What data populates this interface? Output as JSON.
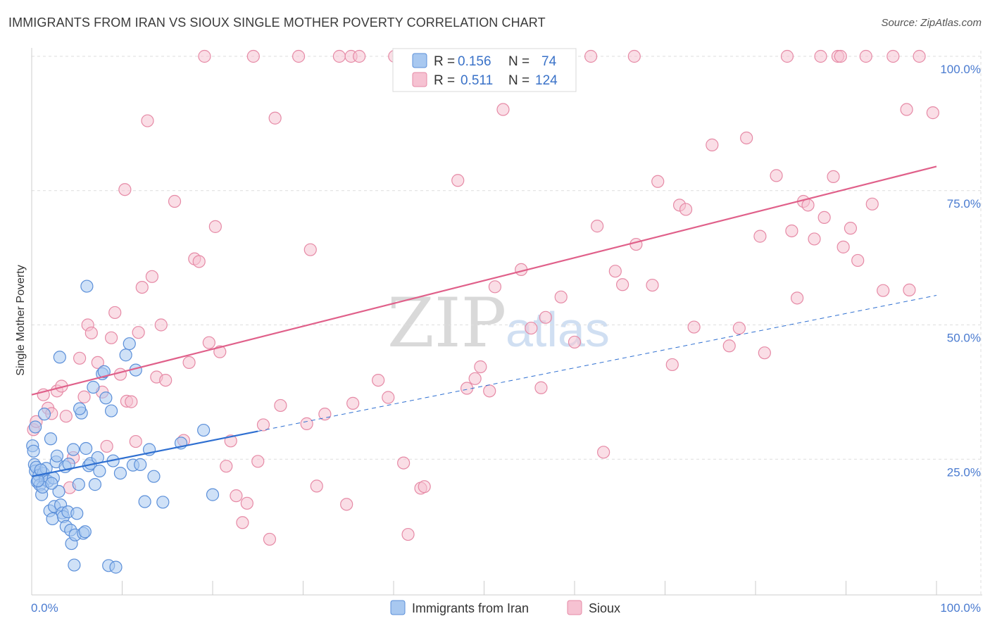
{
  "header": {
    "title": "IMMIGRANTS FROM IRAN VS SIOUX SINGLE MOTHER POVERTY CORRELATION CHART",
    "source": "Source: ZipAtlas.com"
  },
  "watermark": {
    "zip": "ZIP",
    "atlas": "atlas"
  },
  "legend": {
    "iran": {
      "r_label": "R =",
      "r_value": "0.156",
      "n_label": "N =",
      "n_value": "74"
    },
    "sioux": {
      "r_label": "R =",
      "r_value": "0.511",
      "n_label": "N =",
      "n_value": "124"
    }
  },
  "colors": {
    "iran_fill": "#a8c8f0",
    "iran_stroke": "#5b8fd9",
    "iran_line": "#2e6fd1",
    "sioux_fill": "#f6c2d2",
    "sioux_stroke": "#e68aa6",
    "sioux_line": "#e0608a",
    "tick_blue": "#4a7bd0",
    "grid": "#dedede"
  },
  "chart_data": {
    "type": "scatter",
    "title": "IMMIGRANTS FROM IRAN VS SIOUX SINGLE MOTHER POVERTY CORRELATION CHART",
    "xlabel": "",
    "ylabel": "Single Mother Poverty",
    "xlim": [
      0,
      100
    ],
    "ylim": [
      0,
      105
    ],
    "x_tick_labels": [
      "0.0%",
      "100.0%"
    ],
    "y_ticks": [
      25,
      50,
      75,
      100
    ],
    "y_tick_labels": [
      "25.0%",
      "50.0%",
      "75.0%",
      "100.0%"
    ],
    "series": [
      {
        "name": "Immigrants from Iran",
        "r": 0.156,
        "n": 74,
        "trend": {
          "x_start": 0,
          "y_start": 21.8,
          "x_end": 25,
          "y_end": 30.2,
          "dashed_to_x": 100,
          "dashed_to_y": 55.5
        },
        "points": [
          [
            0.1,
            27.5
          ],
          [
            0.2,
            26.5
          ],
          [
            0.3,
            24.0
          ],
          [
            0.4,
            22.8
          ],
          [
            0.5,
            23.5
          ],
          [
            0.6,
            20.8
          ],
          [
            0.8,
            22.0
          ],
          [
            0.9,
            20.2
          ],
          [
            1.1,
            18.4
          ],
          [
            1.3,
            22.4
          ],
          [
            1.5,
            21.2
          ],
          [
            1.6,
            23.3
          ],
          [
            1.8,
            20.9
          ],
          [
            2.0,
            15.4
          ],
          [
            2.1,
            28.8
          ],
          [
            2.3,
            13.9
          ],
          [
            2.5,
            16.2
          ],
          [
            2.7,
            24.5
          ],
          [
            2.8,
            25.6
          ],
          [
            3.0,
            19.0
          ],
          [
            3.2,
            16.5
          ],
          [
            3.4,
            15.0
          ],
          [
            3.5,
            14.3
          ],
          [
            3.7,
            23.6
          ],
          [
            3.8,
            12.5
          ],
          [
            4.0,
            15.2
          ],
          [
            4.1,
            24.1
          ],
          [
            4.3,
            11.8
          ],
          [
            4.4,
            9.3
          ],
          [
            4.6,
            26.8
          ],
          [
            4.8,
            10.9
          ],
          [
            5.0,
            14.9
          ],
          [
            5.2,
            20.3
          ],
          [
            5.5,
            33.6
          ],
          [
            5.7,
            11.2
          ],
          [
            5.9,
            11.5
          ],
          [
            6.0,
            27.0
          ],
          [
            6.3,
            23.8
          ],
          [
            6.5,
            24.2
          ],
          [
            6.8,
            38.4
          ],
          [
            7.0,
            20.3
          ],
          [
            7.3,
            25.3
          ],
          [
            7.5,
            22.8
          ],
          [
            7.8,
            40.9
          ],
          [
            8.0,
            41.3
          ],
          [
            8.2,
            36.4
          ],
          [
            8.5,
            5.2
          ],
          [
            8.8,
            34.0
          ],
          [
            9.0,
            24.7
          ],
          [
            9.3,
            4.9
          ],
          [
            9.8,
            22.4
          ],
          [
            10.4,
            44.4
          ],
          [
            10.8,
            46.5
          ],
          [
            11.2,
            23.9
          ],
          [
            11.5,
            41.6
          ],
          [
            12.0,
            24.0
          ],
          [
            12.5,
            17.1
          ],
          [
            13.0,
            26.8
          ],
          [
            13.5,
            21.8
          ],
          [
            14.5,
            17.0
          ],
          [
            16.5,
            28.0
          ],
          [
            19.0,
            30.4
          ],
          [
            20.0,
            18.4
          ],
          [
            4.7,
            5.3
          ],
          [
            3.1,
            44.0
          ],
          [
            2.4,
            21.5
          ],
          [
            1.2,
            19.8
          ],
          [
            0.7,
            21.0
          ],
          [
            5.3,
            34.4
          ],
          [
            6.1,
            57.2
          ],
          [
            1.0,
            23.0
          ],
          [
            2.2,
            20.5
          ],
          [
            0.4,
            31.0
          ],
          [
            1.4,
            33.4
          ]
        ]
      },
      {
        "name": "Sioux",
        "r": 0.511,
        "n": 124,
        "trend": {
          "x_start": 0,
          "y_start": 37.0,
          "x_end": 100,
          "y_end": 79.5
        },
        "points": [
          [
            0.2,
            30.5
          ],
          [
            0.5,
            32.0
          ],
          [
            1.3,
            37.0
          ],
          [
            1.8,
            34.5
          ],
          [
            2.2,
            33.5
          ],
          [
            2.8,
            37.7
          ],
          [
            3.3,
            38.6
          ],
          [
            3.8,
            33.0
          ],
          [
            4.2,
            19.7
          ],
          [
            4.6,
            25.3
          ],
          [
            5.3,
            43.8
          ],
          [
            5.8,
            36.6
          ],
          [
            6.2,
            50.0
          ],
          [
            6.6,
            48.5
          ],
          [
            7.3,
            43.0
          ],
          [
            7.8,
            37.5
          ],
          [
            8.3,
            27.4
          ],
          [
            8.8,
            47.6
          ],
          [
            9.2,
            52.3
          ],
          [
            9.8,
            40.8
          ],
          [
            10.3,
            75.2
          ],
          [
            10.5,
            35.8
          ],
          [
            11.0,
            35.7
          ],
          [
            11.5,
            28.3
          ],
          [
            11.8,
            48.6
          ],
          [
            12.2,
            57.0
          ],
          [
            12.8,
            88.0
          ],
          [
            13.3,
            59.0
          ],
          [
            13.8,
            40.3
          ],
          [
            14.3,
            50.0
          ],
          [
            14.8,
            39.7
          ],
          [
            15.8,
            73.0
          ],
          [
            16.8,
            28.5
          ],
          [
            17.4,
            43.0
          ],
          [
            18.0,
            62.3
          ],
          [
            18.5,
            61.8
          ],
          [
            19.1,
            100.0
          ],
          [
            19.6,
            46.7
          ],
          [
            20.3,
            68.3
          ],
          [
            20.8,
            45.0
          ],
          [
            21.5,
            23.7
          ],
          [
            22.0,
            28.4
          ],
          [
            22.6,
            18.2
          ],
          [
            23.3,
            13.2
          ],
          [
            23.8,
            16.8
          ],
          [
            24.5,
            100.0
          ],
          [
            25.0,
            24.6
          ],
          [
            25.6,
            31.4
          ],
          [
            26.3,
            10.1
          ],
          [
            26.9,
            88.5
          ],
          [
            27.5,
            35.0
          ],
          [
            29.5,
            100.0
          ],
          [
            30.4,
            31.6
          ],
          [
            30.8,
            64.0
          ],
          [
            31.5,
            20.0
          ],
          [
            32.4,
            33.4
          ],
          [
            34.0,
            100.0
          ],
          [
            34.8,
            16.6
          ],
          [
            35.3,
            100.0
          ],
          [
            35.5,
            35.4
          ],
          [
            36.2,
            100.0
          ],
          [
            38.3,
            39.7
          ],
          [
            39.4,
            36.5
          ],
          [
            40.1,
            100.0
          ],
          [
            41.1,
            24.3
          ],
          [
            41.6,
            11.0
          ],
          [
            43.0,
            19.6
          ],
          [
            43.4,
            19.9
          ],
          [
            47.1,
            76.9
          ],
          [
            48.1,
            38.2
          ],
          [
            49.0,
            40.0
          ],
          [
            49.6,
            42.2
          ],
          [
            50.6,
            37.7
          ],
          [
            51.2,
            57.1
          ],
          [
            52.1,
            90.1
          ],
          [
            53.1,
            100.0
          ],
          [
            54.1,
            60.3
          ],
          [
            55.2,
            49.4
          ],
          [
            56.3,
            38.3
          ],
          [
            56.8,
            51.4
          ],
          [
            58.5,
            55.2
          ],
          [
            60.0,
            46.8
          ],
          [
            61.8,
            100.0
          ],
          [
            62.5,
            68.4
          ],
          [
            63.2,
            26.3
          ],
          [
            64.5,
            60.0
          ],
          [
            65.3,
            57.5
          ],
          [
            66.6,
            100.0
          ],
          [
            66.8,
            65.0
          ],
          [
            68.6,
            57.4
          ],
          [
            69.2,
            76.7
          ],
          [
            70.8,
            42.6
          ],
          [
            71.6,
            72.3
          ],
          [
            72.3,
            71.5
          ],
          [
            73.2,
            49.6
          ],
          [
            75.2,
            83.5
          ],
          [
            77.1,
            46.1
          ],
          [
            78.2,
            49.4
          ],
          [
            79.0,
            84.8
          ],
          [
            80.5,
            66.5
          ],
          [
            81.0,
            44.8
          ],
          [
            82.3,
            77.8
          ],
          [
            83.5,
            100.0
          ],
          [
            84.0,
            67.5
          ],
          [
            84.6,
            55.0
          ],
          [
            85.3,
            73.0
          ],
          [
            85.8,
            72.3
          ],
          [
            86.5,
            66.0
          ],
          [
            87.2,
            100.0
          ],
          [
            87.6,
            70.0
          ],
          [
            88.6,
            77.6
          ],
          [
            89.1,
            100.0
          ],
          [
            89.4,
            100.0
          ],
          [
            89.7,
            64.5
          ],
          [
            90.5,
            68.0
          ],
          [
            91.3,
            62.0
          ],
          [
            92.2,
            100.0
          ],
          [
            92.9,
            72.5
          ],
          [
            94.1,
            56.4
          ],
          [
            95.2,
            100.0
          ],
          [
            96.7,
            90.1
          ],
          [
            97.0,
            56.5
          ],
          [
            98.1,
            100.0
          ],
          [
            99.6,
            89.5
          ]
        ]
      }
    ]
  }
}
